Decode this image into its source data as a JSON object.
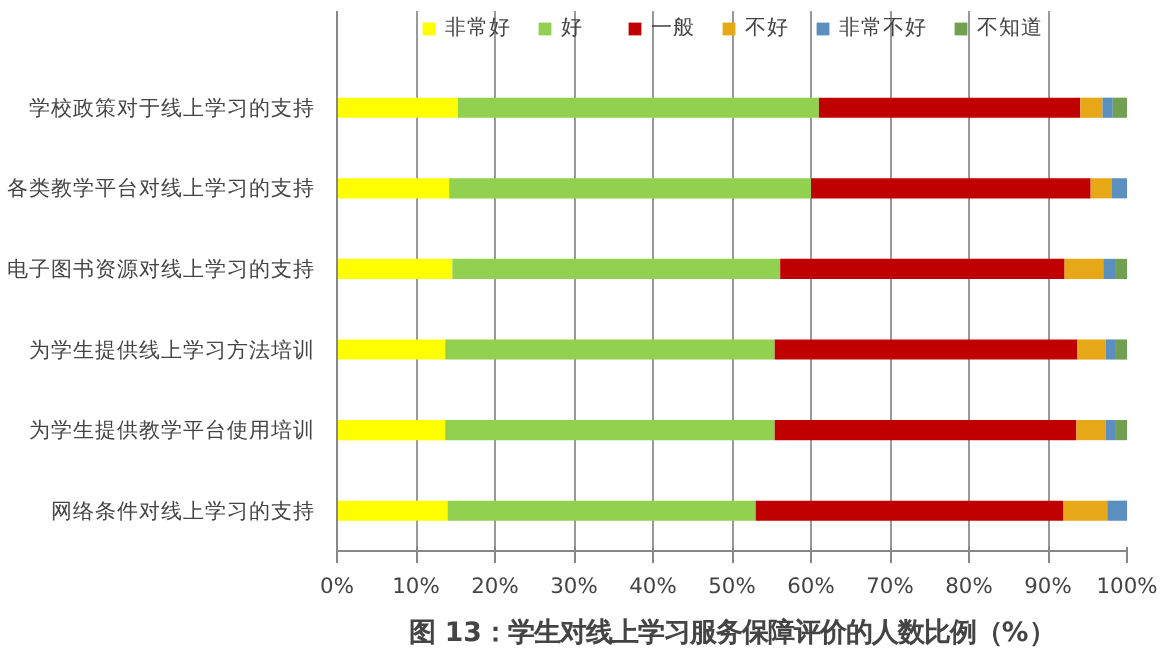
{
  "chart_data": {
    "type": "bar",
    "orientation": "horizontal",
    "stacked": true,
    "title": "图 13：学生对线上学习服务保障评价的人数比例（%）",
    "categories": [
      "学校政策对于线上学习的支持",
      "各类教学平台对线上学习的支持",
      "电子图书资源对线上学习的支持",
      "为学生提供线上学习方法培训",
      "为学生提供教学平台使用培训",
      "网络条件对线上学习的支持"
    ],
    "series": [
      {
        "name": "非常好",
        "color": "#ffff00",
        "values": [
          15.3,
          14.2,
          14.6,
          13.7,
          13.7,
          14.0
        ]
      },
      {
        "name": "好",
        "color": "#92d050",
        "values": [
          45.7,
          45.8,
          41.5,
          41.7,
          41.7,
          39.0
        ]
      },
      {
        "name": "一般",
        "color": "#c00000",
        "values": [
          33.1,
          35.4,
          36.0,
          38.3,
          38.2,
          38.9
        ]
      },
      {
        "name": "不好",
        "color": "#e6a817",
        "values": [
          2.8,
          2.7,
          4.9,
          3.6,
          3.7,
          5.6
        ]
      },
      {
        "name": "非常不好",
        "color": "#5b8fc0",
        "values": [
          1.3,
          1.9,
          1.6,
          1.3,
          1.3,
          2.5
        ]
      },
      {
        "name": "不知道",
        "color": "#70a050",
        "values": [
          1.8,
          0,
          1.4,
          1.4,
          1.4,
          0
        ]
      }
    ],
    "xlim": [
      0,
      100
    ],
    "xticks": [
      {
        "value": 0,
        "label": "0%"
      },
      {
        "value": 10,
        "label": "10%"
      },
      {
        "value": 20,
        "label": "20%"
      },
      {
        "value": 30,
        "label": "30%"
      },
      {
        "value": 40,
        "label": "40%"
      },
      {
        "value": 50,
        "label": "50%"
      },
      {
        "value": 60,
        "label": "60%"
      },
      {
        "value": 70,
        "label": "70%"
      },
      {
        "value": 80,
        "label": "80%"
      },
      {
        "value": 90,
        "label": "90%"
      },
      {
        "value": 100,
        "label": "100%"
      }
    ],
    "grid": "x",
    "legend": "top"
  }
}
